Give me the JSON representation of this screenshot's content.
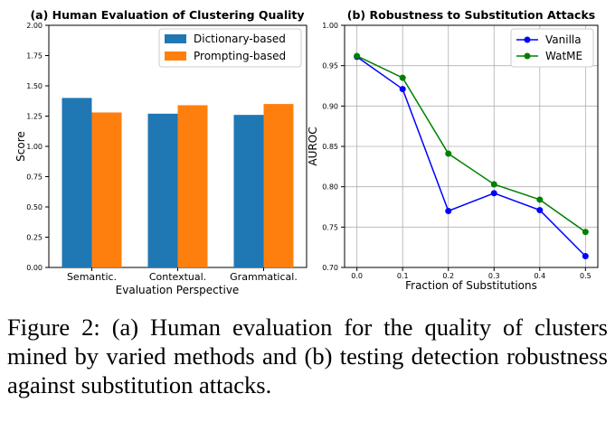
{
  "caption": "Figure 2: (a) Human evaluation for the quality of clusters mined by varied methods and (b) testing detection robustness against substitution attacks.",
  "chart_data": [
    {
      "type": "bar",
      "title": "(a) Human Evaluation of Clustering Quality",
      "xlabel": "Evaluation Perspective",
      "ylabel": "Score",
      "categories": [
        "Semantic.",
        "Contextual.",
        "Grammatical."
      ],
      "series": [
        {
          "name": "Dictionary-based",
          "color": "#1f77b4",
          "values": [
            1.4,
            1.27,
            1.26
          ]
        },
        {
          "name": "Prompting-based",
          "color": "#ff7f0e",
          "values": [
            1.28,
            1.34,
            1.35
          ]
        }
      ],
      "ylim": [
        0,
        2.0
      ],
      "yticks": [
        "0.00",
        "0.25",
        "0.50",
        "0.75",
        "1.00",
        "1.25",
        "1.50",
        "1.75",
        "2.00"
      ],
      "grid": false,
      "legend": "top-right"
    },
    {
      "type": "line",
      "title": "(b) Robustness to Substitution Attacks",
      "xlabel": "Fraction of Substitutions",
      "ylabel": "AUROC",
      "x": [
        0.0,
        0.1,
        0.2,
        0.3,
        0.4,
        0.5
      ],
      "xticks": [
        "0.0",
        "0.1",
        "0.2",
        "0.3",
        "0.4",
        "0.5"
      ],
      "series": [
        {
          "name": "Vanilla",
          "color": "#0000ff",
          "values": [
            0.961,
            0.921,
            0.77,
            0.792,
            0.771,
            0.714
          ]
        },
        {
          "name": "WatME",
          "color": "#008000",
          "values": [
            0.962,
            0.935,
            0.841,
            0.803,
            0.784,
            0.744
          ]
        }
      ],
      "ylim": [
        0.7,
        1.0
      ],
      "yticks": [
        "0.70",
        "0.75",
        "0.80",
        "0.85",
        "0.90",
        "0.95",
        "1.00"
      ],
      "grid": true,
      "legend": "top-right"
    }
  ]
}
